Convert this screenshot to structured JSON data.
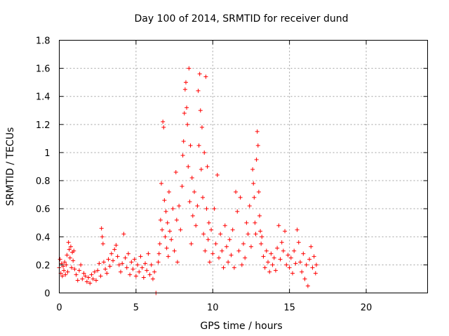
{
  "chart_data": {
    "type": "scatter",
    "title": "Day 100 of 2014, SRMTID for receiver dund",
    "xlabel": "GPS time / hours",
    "ylabel": "SRMTID / TECUs",
    "xlim": [
      0,
      24
    ],
    "ylim": [
      0,
      1.8
    ],
    "xticks": [
      0,
      5,
      10,
      15,
      20
    ],
    "yticks": [
      0,
      0.2,
      0.4,
      0.6,
      0.8,
      1.0,
      1.2,
      1.4,
      1.6,
      1.8
    ],
    "xtick_labels": [
      "0",
      "5",
      "10",
      "15",
      "20"
    ],
    "ytick_labels": [
      "0",
      "0.2",
      "0.4",
      "0.6",
      "0.8",
      "1",
      "1.2",
      "1.4",
      "1.6",
      "1.8"
    ],
    "grid": true,
    "marker": "+",
    "color": "#ff0000",
    "series": [
      {
        "name": "SRMTID",
        "points": [
          [
            0.0,
            0.18
          ],
          [
            0.05,
            0.24
          ],
          [
            0.1,
            0.14
          ],
          [
            0.15,
            0.21
          ],
          [
            0.2,
            0.12
          ],
          [
            0.25,
            0.19
          ],
          [
            0.3,
            0.16
          ],
          [
            0.35,
            0.22
          ],
          [
            0.4,
            0.13
          ],
          [
            0.45,
            0.2
          ],
          [
            0.5,
            0.27
          ],
          [
            0.55,
            0.15
          ],
          [
            0.6,
            0.36
          ],
          [
            0.65,
            0.31
          ],
          [
            0.7,
            0.25
          ],
          [
            0.75,
            0.33
          ],
          [
            0.8,
            0.18
          ],
          [
            0.85,
            0.29
          ],
          [
            0.9,
            0.23
          ],
          [
            0.95,
            0.3
          ],
          [
            1.0,
            0.17
          ],
          [
            1.1,
            0.13
          ],
          [
            1.2,
            0.09
          ],
          [
            1.3,
            0.16
          ],
          [
            1.4,
            0.2
          ],
          [
            1.5,
            0.1
          ],
          [
            1.6,
            0.14
          ],
          [
            1.7,
            0.12
          ],
          [
            1.8,
            0.08
          ],
          [
            1.9,
            0.11
          ],
          [
            2.0,
            0.07
          ],
          [
            2.1,
            0.13
          ],
          [
            2.2,
            0.1
          ],
          [
            2.3,
            0.15
          ],
          [
            2.4,
            0.09
          ],
          [
            2.5,
            0.16
          ],
          [
            2.6,
            0.21
          ],
          [
            2.7,
            0.12
          ],
          [
            2.75,
            0.46
          ],
          [
            2.8,
            0.4
          ],
          [
            2.85,
            0.35
          ],
          [
            2.9,
            0.22
          ],
          [
            3.0,
            0.17
          ],
          [
            3.1,
            0.14
          ],
          [
            3.2,
            0.24
          ],
          [
            3.3,
            0.19
          ],
          [
            3.4,
            0.28
          ],
          [
            3.5,
            0.23
          ],
          [
            3.6,
            0.31
          ],
          [
            3.7,
            0.34
          ],
          [
            3.8,
            0.26
          ],
          [
            3.9,
            0.2
          ],
          [
            4.0,
            0.15
          ],
          [
            4.1,
            0.21
          ],
          [
            4.2,
            0.42
          ],
          [
            4.3,
            0.25
          ],
          [
            4.4,
            0.18
          ],
          [
            4.5,
            0.28
          ],
          [
            4.6,
            0.13
          ],
          [
            4.7,
            0.22
          ],
          [
            4.8,
            0.17
          ],
          [
            4.9,
            0.24
          ],
          [
            5.0,
            0.12
          ],
          [
            5.1,
            0.2
          ],
          [
            5.2,
            0.15
          ],
          [
            5.3,
            0.26
          ],
          [
            5.4,
            0.18
          ],
          [
            5.5,
            0.11
          ],
          [
            5.6,
            0.21
          ],
          [
            5.7,
            0.16
          ],
          [
            5.8,
            0.28
          ],
          [
            5.9,
            0.13
          ],
          [
            6.0,
            0.2
          ],
          [
            6.1,
            0.1
          ],
          [
            6.2,
            0.15
          ],
          [
            6.3,
            0.0
          ],
          [
            6.45,
            0.22
          ],
          [
            6.5,
            0.28
          ],
          [
            6.55,
            0.35
          ],
          [
            6.6,
            0.52
          ],
          [
            6.65,
            0.78
          ],
          [
            6.7,
            0.45
          ],
          [
            6.75,
            1.22
          ],
          [
            6.8,
            1.18
          ],
          [
            6.85,
            0.66
          ],
          [
            6.9,
            0.4
          ],
          [
            6.95,
            0.58
          ],
          [
            7.0,
            0.32
          ],
          [
            7.05,
            0.5
          ],
          [
            7.1,
            0.26
          ],
          [
            7.15,
            0.72
          ],
          [
            7.2,
            0.44
          ],
          [
            7.3,
            0.38
          ],
          [
            7.4,
            0.6
          ],
          [
            7.5,
            0.3
          ],
          [
            7.6,
            0.86
          ],
          [
            7.65,
            0.52
          ],
          [
            7.7,
            0.22
          ],
          [
            7.8,
            0.62
          ],
          [
            7.9,
            0.45
          ],
          [
            8.0,
            0.76
          ],
          [
            8.05,
            0.98
          ],
          [
            8.1,
            1.08
          ],
          [
            8.15,
            1.28
          ],
          [
            8.2,
            1.45
          ],
          [
            8.25,
            1.5
          ],
          [
            8.3,
            1.32
          ],
          [
            8.35,
            1.2
          ],
          [
            8.4,
            0.9
          ],
          [
            8.45,
            1.6
          ],
          [
            8.5,
            0.65
          ],
          [
            8.55,
            1.05
          ],
          [
            8.6,
            0.35
          ],
          [
            8.65,
            0.82
          ],
          [
            8.7,
            0.55
          ],
          [
            8.8,
            0.72
          ],
          [
            8.9,
            0.48
          ],
          [
            9.0,
            0.62
          ],
          [
            9.05,
            1.44
          ],
          [
            9.1,
            1.05
          ],
          [
            9.15,
            1.56
          ],
          [
            9.2,
            1.3
          ],
          [
            9.25,
            0.88
          ],
          [
            9.3,
            1.18
          ],
          [
            9.35,
            0.68
          ],
          [
            9.4,
            0.42
          ],
          [
            9.45,
            1.0
          ],
          [
            9.5,
            0.3
          ],
          [
            9.55,
            1.54
          ],
          [
            9.6,
            0.6
          ],
          [
            9.65,
            0.9
          ],
          [
            9.7,
            0.38
          ],
          [
            9.75,
            0.5
          ],
          [
            9.8,
            0.22
          ],
          [
            9.9,
            0.45
          ],
          [
            10.0,
            0.28
          ],
          [
            10.1,
            0.6
          ],
          [
            10.2,
            0.35
          ],
          [
            10.3,
            0.84
          ],
          [
            10.4,
            0.25
          ],
          [
            10.5,
            0.42
          ],
          [
            10.6,
            0.3
          ],
          [
            10.7,
            0.18
          ],
          [
            10.8,
            0.48
          ],
          [
            10.9,
            0.33
          ],
          [
            11.0,
            0.22
          ],
          [
            11.1,
            0.38
          ],
          [
            11.2,
            0.27
          ],
          [
            11.3,
            0.45
          ],
          [
            11.4,
            0.18
          ],
          [
            11.5,
            0.72
          ],
          [
            11.6,
            0.58
          ],
          [
            11.7,
            0.3
          ],
          [
            11.8,
            0.68
          ],
          [
            11.9,
            0.2
          ],
          [
            12.0,
            0.35
          ],
          [
            12.1,
            0.25
          ],
          [
            12.2,
            0.5
          ],
          [
            12.3,
            0.42
          ],
          [
            12.4,
            0.62
          ],
          [
            12.5,
            0.33
          ],
          [
            12.6,
            0.88
          ],
          [
            12.65,
            0.78
          ],
          [
            12.7,
            0.68
          ],
          [
            12.75,
            0.5
          ],
          [
            12.8,
            0.42
          ],
          [
            12.85,
            0.95
          ],
          [
            12.9,
            1.15
          ],
          [
            12.95,
            1.05
          ],
          [
            13.0,
            0.72
          ],
          [
            13.05,
            0.55
          ],
          [
            13.1,
            0.44
          ],
          [
            13.15,
            0.35
          ],
          [
            13.2,
            0.4
          ],
          [
            13.3,
            0.26
          ],
          [
            13.4,
            0.18
          ],
          [
            13.5,
            0.3
          ],
          [
            13.6,
            0.22
          ],
          [
            13.7,
            0.15
          ],
          [
            13.8,
            0.28
          ],
          [
            13.9,
            0.2
          ],
          [
            14.0,
            0.25
          ],
          [
            14.1,
            0.16
          ],
          [
            14.2,
            0.32
          ],
          [
            14.3,
            0.48
          ],
          [
            14.4,
            0.24
          ],
          [
            14.5,
            0.36
          ],
          [
            14.6,
            0.3
          ],
          [
            14.7,
            0.44
          ],
          [
            14.8,
            0.2
          ],
          [
            14.9,
            0.27
          ],
          [
            15.0,
            0.18
          ],
          [
            15.1,
            0.25
          ],
          [
            15.2,
            0.14
          ],
          [
            15.3,
            0.3
          ],
          [
            15.4,
            0.21
          ],
          [
            15.5,
            0.45
          ],
          [
            15.6,
            0.36
          ],
          [
            15.7,
            0.22
          ],
          [
            15.8,
            0.15
          ],
          [
            15.9,
            0.28
          ],
          [
            16.0,
            0.1
          ],
          [
            16.1,
            0.2
          ],
          [
            16.2,
            0.05
          ],
          [
            16.3,
            0.24
          ],
          [
            16.4,
            0.33
          ],
          [
            16.5,
            0.18
          ],
          [
            16.6,
            0.26
          ],
          [
            16.7,
            0.14
          ],
          [
            16.75,
            0.2
          ]
        ]
      }
    ]
  }
}
